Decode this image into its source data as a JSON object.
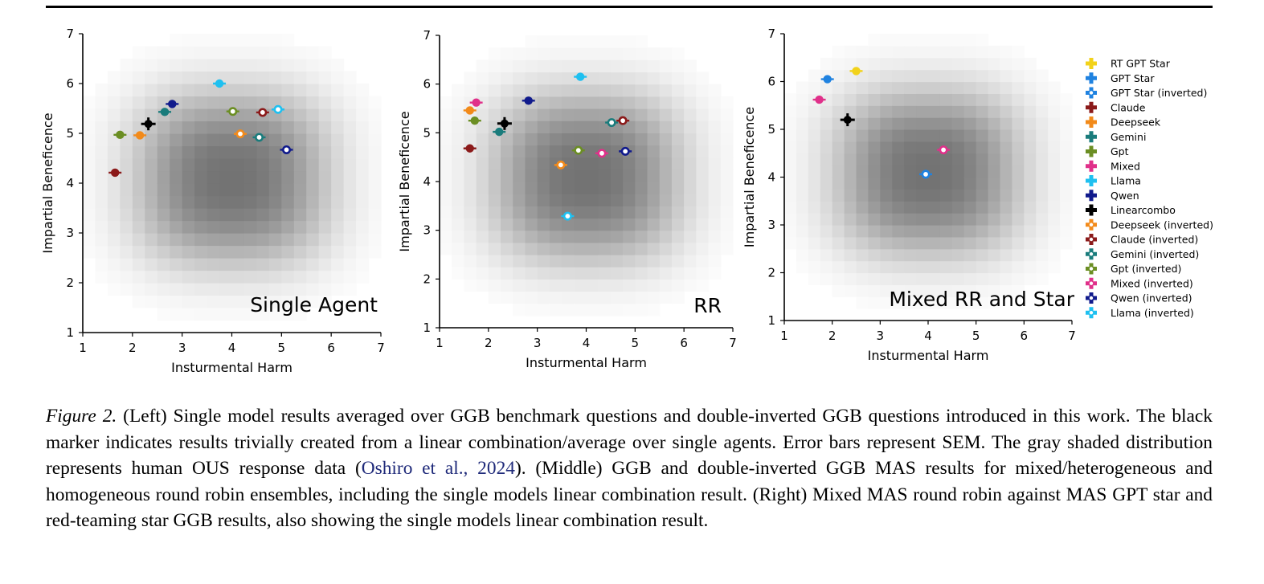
{
  "caption": {
    "figure_label": "Figure 2.",
    "text_before_cite": "(Left) Single model results averaged over GGB benchmark questions and double-inverted GGB questions introduced in this work. The black marker indicates results trivially created from a linear combination/average over single agents. Error bars represent SEM. The gray shaded distribution represents human OUS response data (",
    "cite": "Oshiro et al., 2024",
    "text_after_cite": "). (Middle) GGB and double-inverted GGB MAS results for mixed/heterogeneous and homogeneous round robin ensembles, including the single models linear combination result. (Right) Mixed MAS round robin against MAS GPT star and red-teaming star GGB results, also showing the single models linear combination result."
  },
  "colors": {
    "RT GPT Star": "#f2d21a",
    "GPT Star": "#1f82e0",
    "Claude": "#8b1a1a",
    "Deepseek": "#f28a1a",
    "Gemini": "#1a7c7c",
    "Gpt": "#6b8e23",
    "Mixed": "#e0308a",
    "Llama": "#1fc0f0",
    "Qwen": "#101a8c",
    "Linearcombo": "#000000"
  },
  "legend": [
    {
      "label": "RT GPT Star",
      "color_key": "RT GPT Star",
      "inverted": false
    },
    {
      "label": "GPT Star",
      "color_key": "GPT Star",
      "inverted": false
    },
    {
      "label": "GPT Star (inverted)",
      "color_key": "GPT Star",
      "inverted": true
    },
    {
      "label": "Claude",
      "color_key": "Claude",
      "inverted": false
    },
    {
      "label": "Deepseek",
      "color_key": "Deepseek",
      "inverted": false
    },
    {
      "label": "Gemini",
      "color_key": "Gemini",
      "inverted": false
    },
    {
      "label": "Gpt",
      "color_key": "Gpt",
      "inverted": false
    },
    {
      "label": "Mixed",
      "color_key": "Mixed",
      "inverted": false
    },
    {
      "label": "Llama",
      "color_key": "Llama",
      "inverted": false
    },
    {
      "label": "Qwen",
      "color_key": "Qwen",
      "inverted": false
    },
    {
      "label": "Linearcombo",
      "color_key": "Linearcombo",
      "inverted": false
    },
    {
      "label": "Deepseek (inverted)",
      "color_key": "Deepseek",
      "inverted": true
    },
    {
      "label": "Claude (inverted)",
      "color_key": "Claude",
      "inverted": true
    },
    {
      "label": "Gemini (inverted)",
      "color_key": "Gemini",
      "inverted": true
    },
    {
      "label": "Gpt (inverted)",
      "color_key": "Gpt",
      "inverted": true
    },
    {
      "label": "Mixed (inverted)",
      "color_key": "Mixed",
      "inverted": true
    },
    {
      "label": "Qwen (inverted)",
      "color_key": "Qwen",
      "inverted": true
    },
    {
      "label": "Llama (inverted)",
      "color_key": "Llama",
      "inverted": true
    }
  ],
  "chart_data": [
    {
      "type": "scatter",
      "title": "Single Agent",
      "xlabel": "Insturmental Harm",
      "ylabel": "Impartial Beneficence",
      "xlim": [
        1,
        7
      ],
      "ylim": [
        1,
        7
      ],
      "xticks": [
        "1",
        "2",
        "3",
        "4",
        "5",
        "6",
        "7"
      ],
      "yticks": [
        "1",
        "2",
        "3",
        "4",
        "5",
        "6",
        "7"
      ],
      "background": "human OUS response distribution (gray shaded)",
      "points": [
        {
          "series": "Claude",
          "x": 1.65,
          "y": 4.21,
          "inverted": false
        },
        {
          "series": "Gpt",
          "x": 1.75,
          "y": 4.97,
          "inverted": false
        },
        {
          "series": "Deepseek",
          "x": 2.15,
          "y": 4.96,
          "inverted": false
        },
        {
          "series": "Linearcombo",
          "x": 2.32,
          "y": 5.19,
          "inverted": false
        },
        {
          "series": "Gemini",
          "x": 2.65,
          "y": 5.43,
          "inverted": false
        },
        {
          "series": "Qwen",
          "x": 2.8,
          "y": 5.59,
          "inverted": false
        },
        {
          "series": "Llama",
          "x": 3.75,
          "y": 6.0,
          "inverted": false
        },
        {
          "series": "Gpt",
          "x": 4.02,
          "y": 5.44,
          "inverted": true
        },
        {
          "series": "Deepseek",
          "x": 4.17,
          "y": 4.99,
          "inverted": true
        },
        {
          "series": "Gemini",
          "x": 4.55,
          "y": 4.92,
          "inverted": true
        },
        {
          "series": "Claude",
          "x": 4.62,
          "y": 5.42,
          "inverted": true
        },
        {
          "series": "Llama",
          "x": 4.93,
          "y": 5.48,
          "inverted": true
        },
        {
          "series": "Qwen",
          "x": 5.1,
          "y": 4.67,
          "inverted": true
        }
      ]
    },
    {
      "type": "scatter",
      "title": "RR",
      "xlabel": "Insturmental Harm",
      "ylabel": "Impartial Beneficence",
      "xlim": [
        1,
        7
      ],
      "ylim": [
        1,
        7
      ],
      "xticks": [
        "1",
        "2",
        "3",
        "4",
        "5",
        "6",
        "7"
      ],
      "yticks": [
        "1",
        "2",
        "3",
        "4",
        "5",
        "6",
        "7"
      ],
      "background": "human OUS response distribution (gray shaded)",
      "points": [
        {
          "series": "Deepseek",
          "x": 1.62,
          "y": 5.46,
          "inverted": false
        },
        {
          "series": "Mixed",
          "x": 1.75,
          "y": 5.62,
          "inverted": false
        },
        {
          "series": "Gpt",
          "x": 1.72,
          "y": 5.25,
          "inverted": false
        },
        {
          "series": "Claude",
          "x": 1.62,
          "y": 4.68,
          "inverted": false
        },
        {
          "series": "Gemini",
          "x": 2.22,
          "y": 5.02,
          "inverted": false
        },
        {
          "series": "Linearcombo",
          "x": 2.33,
          "y": 5.19,
          "inverted": false
        },
        {
          "series": "Qwen",
          "x": 2.82,
          "y": 5.66,
          "inverted": false
        },
        {
          "series": "Llama",
          "x": 3.88,
          "y": 6.15,
          "inverted": false
        },
        {
          "series": "Deepseek",
          "x": 3.48,
          "y": 4.34,
          "inverted": true
        },
        {
          "series": "Llama",
          "x": 3.62,
          "y": 3.29,
          "inverted": true
        },
        {
          "series": "Gpt",
          "x": 3.84,
          "y": 4.64,
          "inverted": true
        },
        {
          "series": "Mixed",
          "x": 4.32,
          "y": 4.58,
          "inverted": true
        },
        {
          "series": "Gemini",
          "x": 4.52,
          "y": 5.21,
          "inverted": true
        },
        {
          "series": "Claude",
          "x": 4.75,
          "y": 5.25,
          "inverted": true
        },
        {
          "series": "Qwen",
          "x": 4.8,
          "y": 4.62,
          "inverted": true
        }
      ]
    },
    {
      "type": "scatter",
      "title": "Mixed RR and Star",
      "xlabel": "Insturmental Harm",
      "ylabel": "Impartial Beneficence",
      "xlim": [
        1,
        7
      ],
      "ylim": [
        1,
        7
      ],
      "xticks": [
        "1",
        "2",
        "3",
        "4",
        "5",
        "6",
        "7"
      ],
      "yticks": [
        "1",
        "2",
        "3",
        "4",
        "5",
        "6",
        "7"
      ],
      "background": "human OUS response distribution (gray shaded)",
      "points": [
        {
          "series": "Mixed",
          "x": 1.73,
          "y": 5.62,
          "inverted": false
        },
        {
          "series": "GPT Star",
          "x": 1.9,
          "y": 6.05,
          "inverted": false
        },
        {
          "series": "RT GPT Star",
          "x": 2.5,
          "y": 6.22,
          "inverted": false
        },
        {
          "series": "Linearcombo",
          "x": 2.32,
          "y": 5.2,
          "inverted": false
        },
        {
          "series": "Mixed",
          "x": 4.32,
          "y": 4.57,
          "inverted": true
        },
        {
          "series": "GPT Star",
          "x": 3.95,
          "y": 4.06,
          "inverted": true
        }
      ]
    }
  ]
}
